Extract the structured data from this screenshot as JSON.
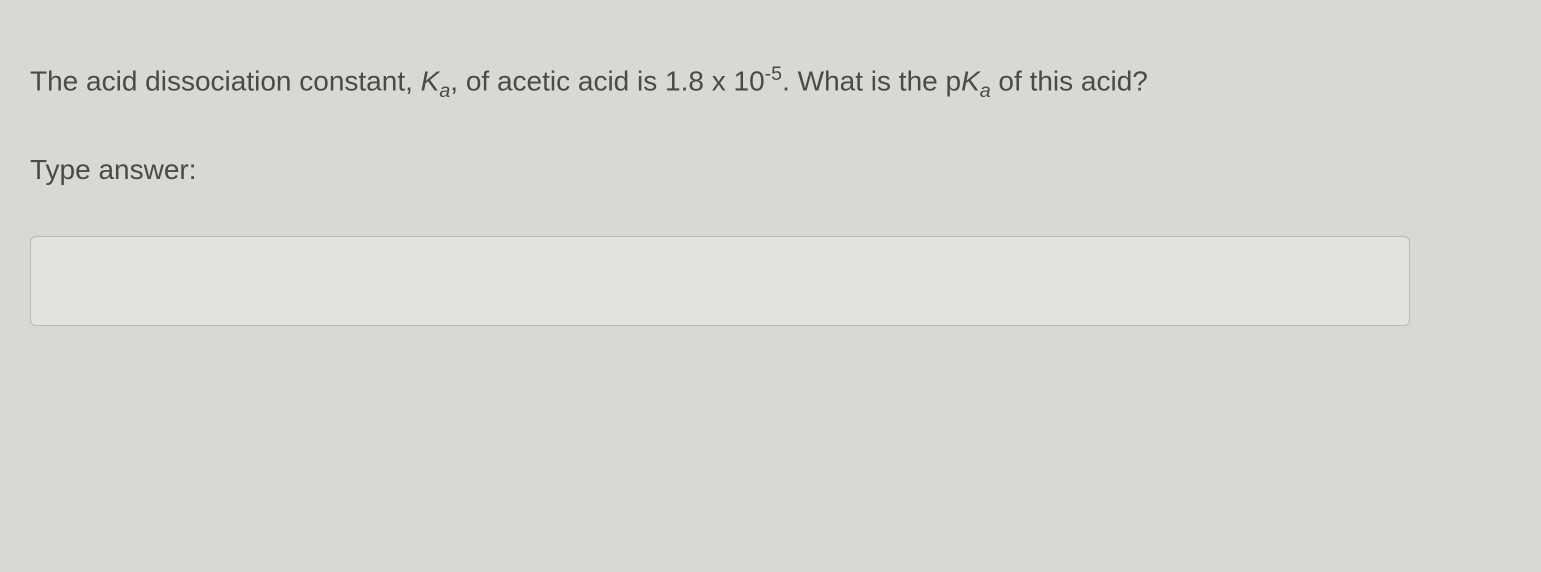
{
  "question": {
    "text_prefix": "The acid dissociation constant, ",
    "ka_symbol_k": "K",
    "ka_symbol_sub": "a",
    "text_mid1": ", of acetic acid is 1.8 x 10",
    "exponent": "-5",
    "text_mid2": ". What is the p",
    "pka_k": "K",
    "pka_sub": "a",
    "text_suffix": " of this acid?"
  },
  "input_label": "Type answer:",
  "answer_value": "",
  "colors": {
    "background": "#d8d8d5",
    "text": "#4a4a4a",
    "input_bg": "#e2e2df",
    "input_border": "#b8b8b5"
  }
}
